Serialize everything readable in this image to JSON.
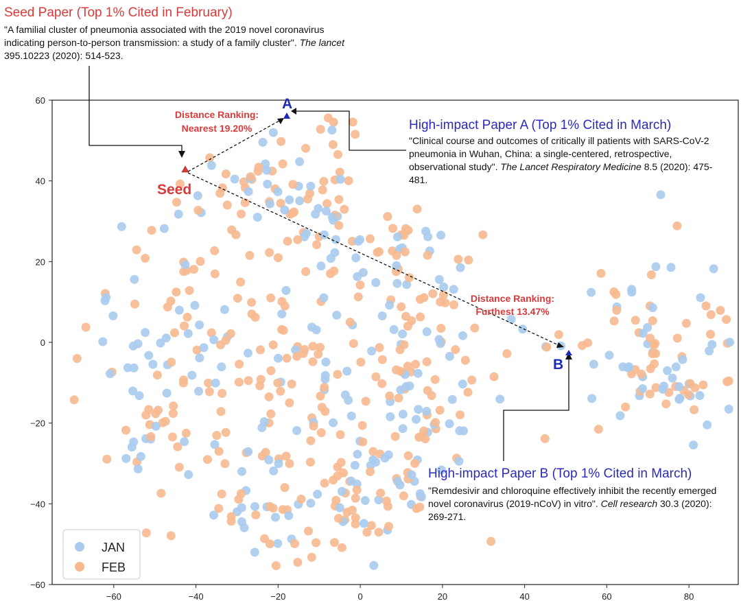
{
  "chart_data": {
    "type": "scatter",
    "xlim": [
      -75,
      92
    ],
    "ylim": [
      -60,
      60
    ],
    "x_ticks": [
      -60,
      -40,
      -20,
      0,
      20,
      40,
      60,
      80
    ],
    "y_ticks": [
      60,
      40,
      20,
      0,
      -20,
      -40,
      -60
    ],
    "grid": false,
    "legend_position": "bottom-left",
    "series": [
      {
        "name": "JAN",
        "color": "#a9cbee",
        "note": "points sampled approx from figure"
      },
      {
        "name": "FEB",
        "color": "#f7b98f"
      }
    ],
    "highlights": [
      {
        "label": "Seed",
        "x": -41.5,
        "y": 42.5,
        "color": "#d93a3a"
      },
      {
        "label": "A",
        "x": -16.5,
        "y": 56.5,
        "color": "#1c2bb8"
      },
      {
        "label": "B",
        "x": 53,
        "y": -3,
        "color": "#1c2bb8"
      }
    ],
    "annotations": [
      {
        "text_line1": "Distance Ranking:",
        "text_line2": "Nearest 19.20%",
        "from": "Seed",
        "to": "A"
      },
      {
        "text_line1": "Distance Ranking:",
        "text_line2": "Furthest 13.47%",
        "from": "Seed",
        "to": "B"
      }
    ]
  },
  "seed_paper": {
    "title": "Seed Paper (Top 1% Cited in February)",
    "citation": "\"A familial cluster of pneumonia associated with the 2019 novel coronavirus indicating person-to-person transmission: a study of a family cluster\".",
    "journal": "The lancet",
    "details": "395.10223 (2020): 514-523."
  },
  "paper_a": {
    "title": "High-impact Paper A (Top 1% Cited in March)",
    "citation": "\"Clinical course and outcomes of critically ill patients with SARS-CoV-2 pneumonia in Wuhan, China: a single-centered, retrospective, observational study\".",
    "journal": "The Lancet Respiratory Medicine",
    "details": "8.5 (2020): 475-481."
  },
  "paper_b": {
    "title": "High-impact Paper B (Top 1% Cited in March)",
    "citation": "\"Remdesivir and chloroquine effectively inhibit the recently emerged novel coronavirus (2019-nCoV) in vitro\".",
    "journal": "Cell research",
    "details": "30.3 (2020): 269-271."
  },
  "legend": {
    "jan": "JAN",
    "feb": "FEB"
  },
  "labels": {
    "seed": "Seed",
    "a": "A",
    "b": "B"
  }
}
